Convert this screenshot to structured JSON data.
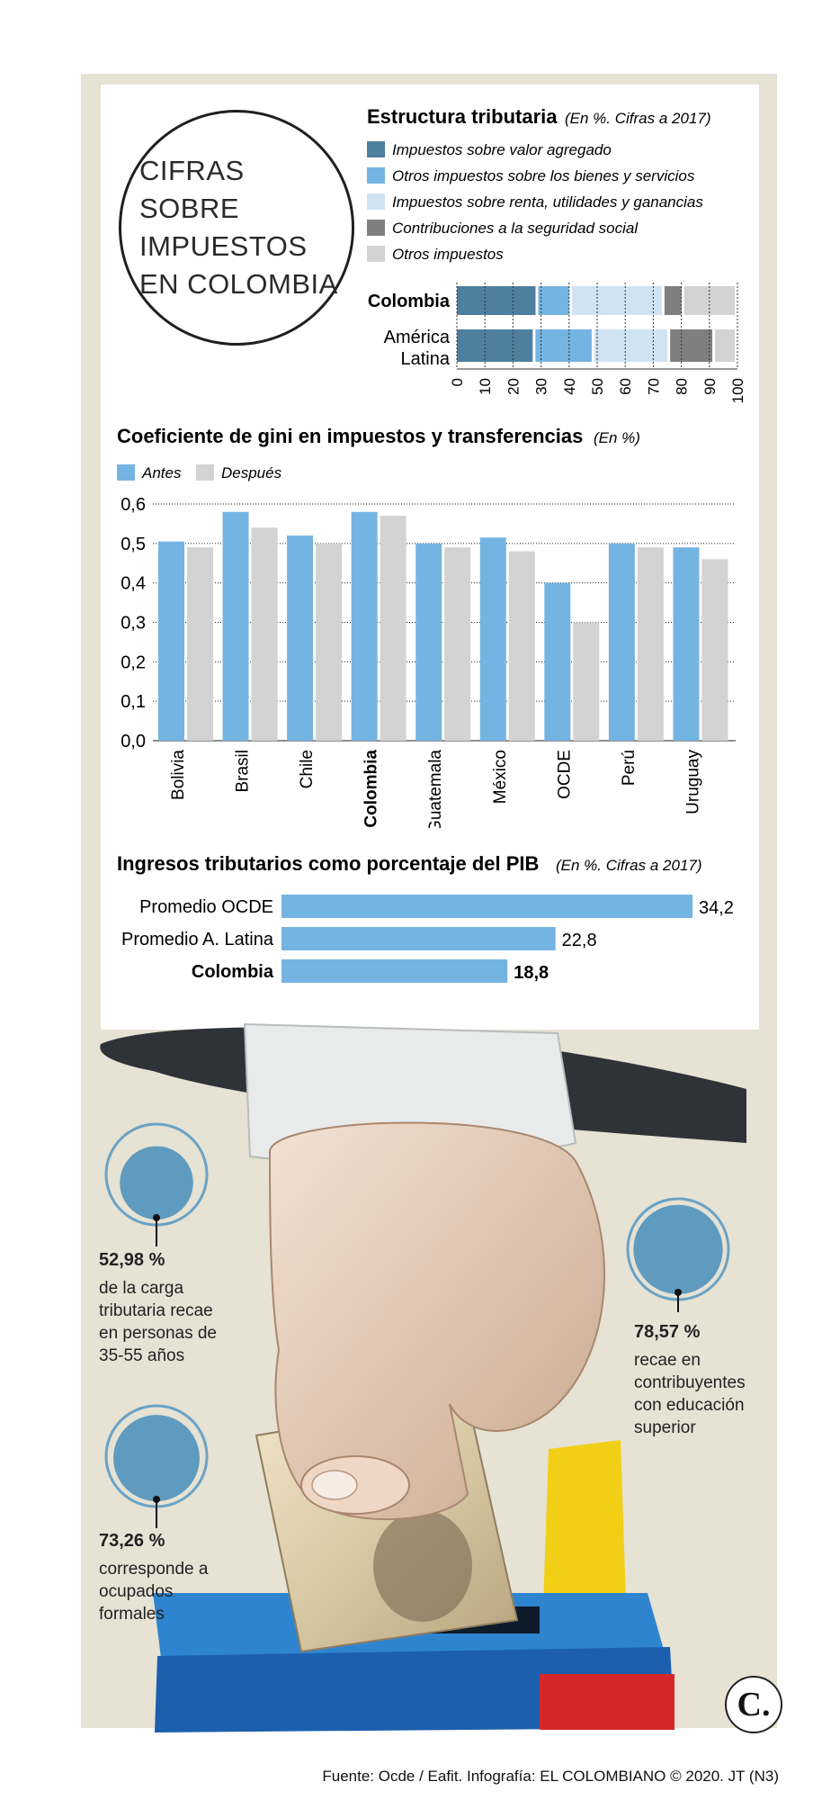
{
  "title": "CIFRAS SOBRE IMPUESTOS EN COLOMBIA",
  "colors": {
    "dark_blue": "#4f7f9f",
    "light_blue": "#74b4e2",
    "pale_blue": "#cfe3f3",
    "dark_gray": "#7f7f7f",
    "light_gray": "#d3d3d3",
    "frame": "#e6e2d4"
  },
  "chart_data": [
    {
      "type": "bar",
      "orientation": "horizontal-stacked",
      "title": "Estructura tributaria",
      "subtitle": "(En %. Cifras a 2017)",
      "categories": [
        "Colombia",
        "América Latina"
      ],
      "series": [
        {
          "name": "Impuestos sobre valor agregado",
          "color": "#4f7f9f",
          "values": [
            29,
            28
          ]
        },
        {
          "name": "Otros impuestos sobre los bienes y servicios",
          "color": "#74b4e2",
          "values": [
            12,
            21
          ]
        },
        {
          "name": "Impuestos sobre renta, utilidades y ganancias",
          "color": "#cfe3f3",
          "values": [
            33,
            27
          ]
        },
        {
          "name": "Contribuciones a la seguridad social",
          "color": "#7f7f7f",
          "values": [
            7,
            16
          ]
        },
        {
          "name": "Otros impuestos",
          "color": "#d3d3d3",
          "values": [
            19,
            8
          ]
        }
      ],
      "xticks": [
        "0",
        "10",
        "20",
        "30",
        "40",
        "50",
        "60",
        "70",
        "80",
        "90",
        "100"
      ],
      "xlim": [
        0,
        100
      ],
      "legend_position": "top"
    },
    {
      "type": "bar",
      "title": "Coeficiente de gini en impuestos y transferencias",
      "subtitle": "(En %)",
      "categories": [
        "Bolivia",
        "Brasil",
        "Chile",
        "Colombia",
        "Guatemala",
        "México",
        "OCDE",
        "Perú",
        "Uruguay"
      ],
      "series": [
        {
          "name": "Antes",
          "color": "#74b4e2",
          "values": [
            0.505,
            0.58,
            0.52,
            0.58,
            0.5,
            0.515,
            0.4,
            0.5,
            0.49
          ]
        },
        {
          "name": "Después",
          "color": "#d3d3d3",
          "values": [
            0.49,
            0.54,
            0.5,
            0.57,
            0.49,
            0.48,
            0.3,
            0.49,
            0.46
          ]
        }
      ],
      "yticks": [
        "0,0",
        "0,1",
        "0,2",
        "0,3",
        "0,4",
        "0,5",
        "0,6"
      ],
      "ylim": [
        0,
        0.6
      ],
      "grid": true,
      "legend_position": "top-left"
    },
    {
      "type": "bar",
      "orientation": "horizontal",
      "title": "Ingresos tributarios como porcentaje del PIB",
      "subtitle": "(En %. Cifras a 2017)",
      "categories": [
        "Promedio OCDE",
        "Promedio A. Latina",
        "Colombia"
      ],
      "values": [
        34.2,
        22.8,
        18.8
      ],
      "value_labels": [
        "34,2",
        "22,8",
        "18,8"
      ],
      "color": "#74b4e2"
    }
  ],
  "stats": [
    {
      "value": 52.98,
      "pct": "52,98 %",
      "desc": "de la carga tributaria recae en personas de 35-55 años"
    },
    {
      "value": 73.26,
      "pct": "73,26 %",
      "desc": "corresponde a ocupados formales"
    },
    {
      "value": 78.57,
      "pct": "78,57 %",
      "desc": "recae en contribuyentes con educación superior"
    }
  ],
  "logo": "C.",
  "footer": "Fuente: Ocde / Eafit. Infografía: EL COLOMBIANO © 2020. JT (N3)"
}
